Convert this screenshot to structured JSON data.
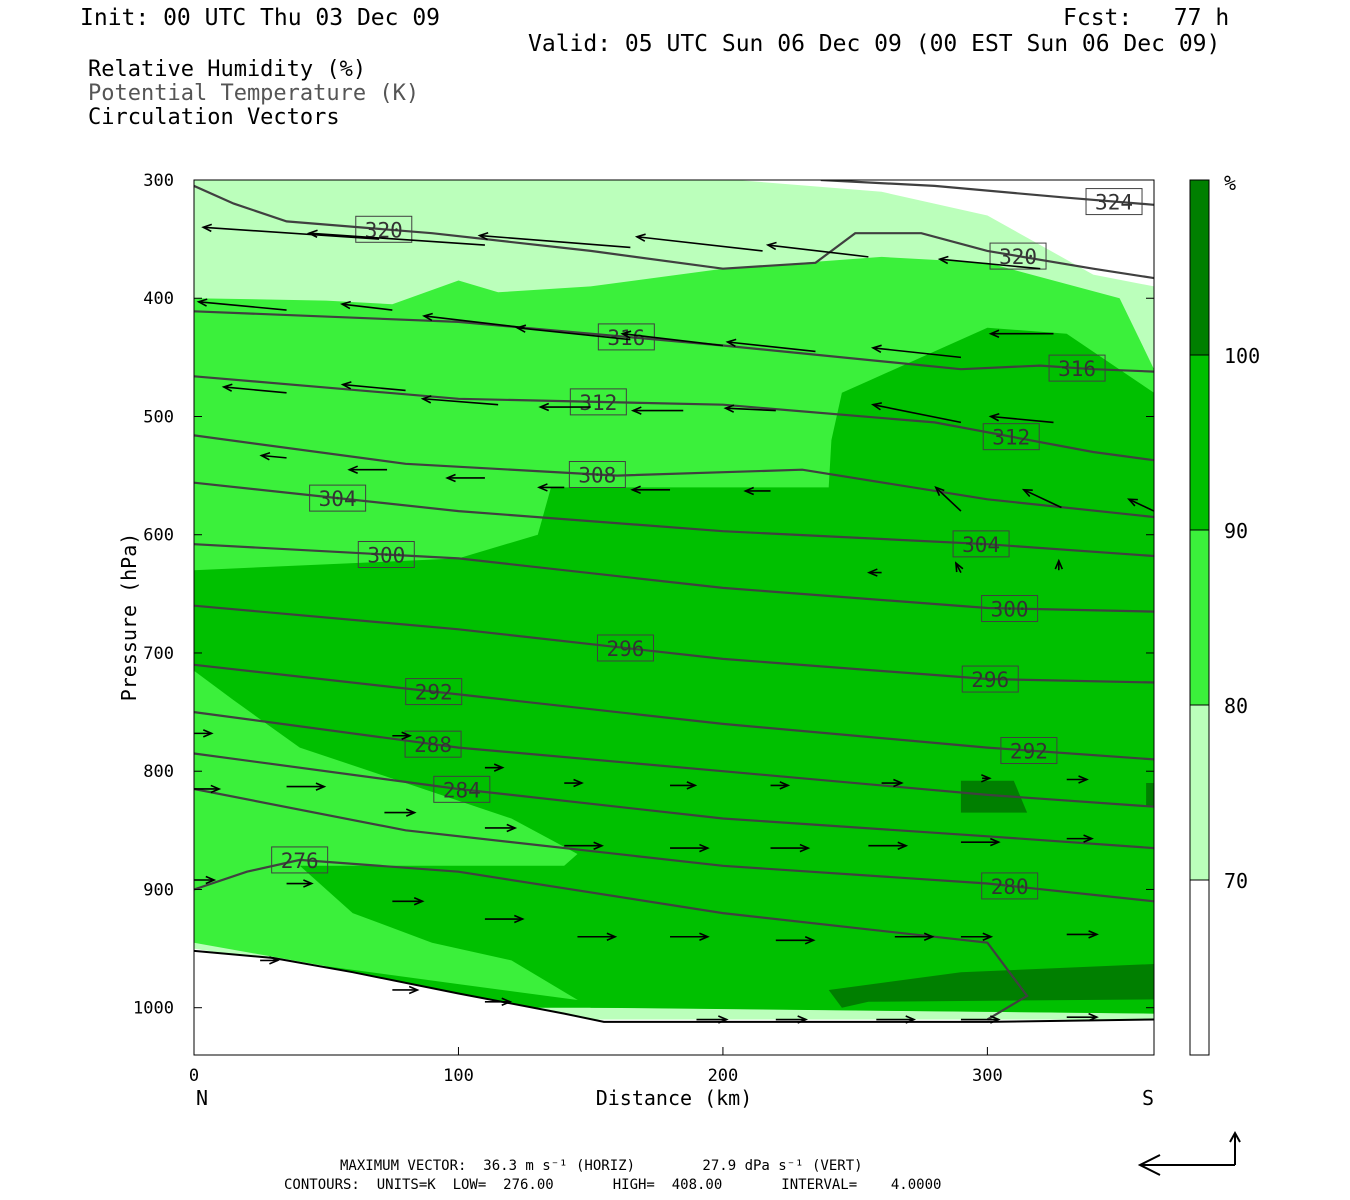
{
  "header": {
    "init": "Init: 00 UTC Thu 03 Dec 09",
    "fcst": "Fcst:   77 h",
    "valid": "Valid: 05 UTC Sun 06 Dec 09 (00 EST Sun 06 Dec 09)"
  },
  "legend": {
    "line1": "Relative Humidity (%)",
    "line2": "Potential Temperature (K)",
    "line3": "Circulation Vectors"
  },
  "footer": {
    "max_vector": "MAXIMUM VECTOR:  36.3 m s⁻¹ (HORIZ)        27.9 dPa s⁻¹ (VERT)",
    "contours": "CONTOURS:  UNITS=K  LOW=  276.00       HIGH=  408.00       INTERVAL=    4.0000"
  },
  "chart_data": {
    "type": "contour-cross-section",
    "xlabel": "Distance (km)",
    "ylabel": "Pressure (hPa)",
    "x_start_label": "N",
    "x_end_label": "S",
    "xlim": [
      0,
      363
    ],
    "ylim": [
      1040,
      300
    ],
    "x_ticks": [
      0,
      100,
      200,
      300
    ],
    "y_ticks": [
      300,
      400,
      500,
      600,
      700,
      800,
      900,
      1000
    ],
    "colorbar": {
      "unit": "%",
      "levels": [
        70,
        80,
        90,
        100
      ],
      "colors": [
        "#ffffff",
        "#bbffbb",
        "#3bf03b",
        "#00c000",
        "#007f00"
      ]
    },
    "theta_contours": [
      {
        "label": "324",
        "points": [
          [
            237,
            300
          ],
          [
            280,
            305
          ],
          [
            330,
            315
          ],
          [
            363,
            321
          ]
        ]
      },
      {
        "label": "320",
        "points": [
          [
            0,
            305
          ],
          [
            15,
            320
          ],
          [
            35,
            335
          ],
          [
            90,
            345
          ],
          [
            150,
            360
          ],
          [
            200,
            375
          ],
          [
            235,
            370
          ],
          [
            250,
            345
          ],
          [
            275,
            345
          ],
          [
            300,
            360
          ],
          [
            340,
            375
          ],
          [
            363,
            383
          ]
        ]
      },
      {
        "label": "316",
        "points": [
          [
            0,
            411
          ],
          [
            100,
            420
          ],
          [
            200,
            440
          ],
          [
            290,
            460
          ],
          [
            320,
            457
          ],
          [
            340,
            460
          ],
          [
            363,
            462
          ]
        ]
      },
      {
        "label": "312",
        "points": [
          [
            0,
            466
          ],
          [
            100,
            485
          ],
          [
            200,
            490
          ],
          [
            280,
            505
          ],
          [
            340,
            530
          ],
          [
            363,
            537
          ]
        ]
      },
      {
        "label": "308",
        "points": [
          [
            0,
            516
          ],
          [
            80,
            540
          ],
          [
            160,
            550
          ],
          [
            230,
            545
          ],
          [
            300,
            570
          ],
          [
            363,
            585
          ]
        ]
      },
      {
        "label": "304",
        "points": [
          [
            0,
            556
          ],
          [
            100,
            580
          ],
          [
            200,
            597
          ],
          [
            300,
            608
          ],
          [
            363,
            618
          ]
        ]
      },
      {
        "label": "300",
        "points": [
          [
            0,
            608
          ],
          [
            100,
            620
          ],
          [
            200,
            645
          ],
          [
            300,
            662
          ],
          [
            363,
            665
          ]
        ]
      },
      {
        "label": "296",
        "points": [
          [
            0,
            660
          ],
          [
            100,
            680
          ],
          [
            200,
            705
          ],
          [
            300,
            722
          ],
          [
            363,
            725
          ]
        ]
      },
      {
        "label": "292",
        "points": [
          [
            0,
            710
          ],
          [
            100,
            735
          ],
          [
            200,
            760
          ],
          [
            300,
            780
          ],
          [
            363,
            790
          ]
        ]
      },
      {
        "label": "288",
        "points": [
          [
            0,
            750
          ],
          [
            100,
            780
          ],
          [
            200,
            800
          ],
          [
            300,
            820
          ],
          [
            363,
            830
          ]
        ]
      },
      {
        "label": "284",
        "points": [
          [
            0,
            785
          ],
          [
            100,
            815
          ],
          [
            200,
            840
          ],
          [
            300,
            855
          ],
          [
            363,
            865
          ]
        ]
      },
      {
        "label": "280",
        "points": [
          [
            0,
            815
          ],
          [
            80,
            850
          ],
          [
            200,
            880
          ],
          [
            300,
            895
          ],
          [
            363,
            910
          ]
        ]
      },
      {
        "label": "276",
        "points": [
          [
            0,
            900
          ],
          [
            20,
            885
          ],
          [
            40,
            875
          ],
          [
            100,
            885
          ],
          [
            200,
            920
          ],
          [
            300,
            945
          ],
          [
            315,
            990
          ],
          [
            300,
            1010
          ]
        ]
      }
    ],
    "rh_regions": [
      {
        "rh_min": 70,
        "points": [
          [
            0,
            300
          ],
          [
            205,
            300
          ],
          [
            260,
            310
          ],
          [
            300,
            330
          ],
          [
            340,
            380
          ],
          [
            363,
            390
          ],
          [
            363,
            1010
          ],
          [
            150,
            1010
          ],
          [
            100,
            990
          ],
          [
            50,
            968
          ],
          [
            0,
            950
          ]
        ]
      },
      {
        "rh_min": 80,
        "points": [
          [
            0,
            400
          ],
          [
            50,
            402
          ],
          [
            75,
            405
          ],
          [
            100,
            385
          ],
          [
            115,
            395
          ],
          [
            150,
            390
          ],
          [
            200,
            375
          ],
          [
            260,
            365
          ],
          [
            300,
            370
          ],
          [
            350,
            400
          ],
          [
            363,
            460
          ],
          [
            363,
            1005
          ],
          [
            160,
            1000
          ],
          [
            100,
            985
          ],
          [
            50,
            965
          ],
          [
            0,
            945
          ]
        ]
      },
      {
        "rh_min": 90,
        "points": [
          [
            0,
            630
          ],
          [
            100,
            620
          ],
          [
            130,
            600
          ],
          [
            135,
            560
          ],
          [
            145,
            560
          ],
          [
            200,
            560
          ],
          [
            240,
            560
          ],
          [
            241,
            520
          ],
          [
            245,
            480
          ],
          [
            300,
            425
          ],
          [
            330,
            430
          ],
          [
            363,
            480
          ],
          [
            363,
            1005
          ],
          [
            150,
            1000
          ],
          [
            120,
            960
          ],
          [
            90,
            945
          ],
          [
            60,
            920
          ],
          [
            40,
            880
          ],
          [
            140,
            880
          ],
          [
            145,
            870
          ],
          [
            120,
            840
          ],
          [
            80,
            810
          ],
          [
            40,
            780
          ],
          [
            15,
            740
          ],
          [
            0,
            715
          ]
        ]
      },
      {
        "rh_min": 90,
        "points": [
          [
            0,
            960
          ],
          [
            50,
            965
          ],
          [
            100,
            980
          ],
          [
            150,
            995
          ],
          [
            160,
            1000
          ],
          [
            0,
            1000
          ]
        ]
      },
      {
        "rh_min": 100,
        "points": [
          [
            290,
            808
          ],
          [
            310,
            808
          ],
          [
            315,
            835
          ],
          [
            290,
            835
          ]
        ]
      },
      {
        "rh_min": 100,
        "points": [
          [
            240,
            985
          ],
          [
            290,
            970
          ],
          [
            363,
            963
          ],
          [
            363,
            993
          ],
          [
            255,
            995
          ],
          [
            245,
            1000
          ]
        ]
      },
      {
        "rh_min": 100,
        "points": [
          [
            360,
            810
          ],
          [
            363,
            810
          ],
          [
            363,
            830
          ],
          [
            360,
            830
          ]
        ]
      }
    ],
    "vectors": [
      {
        "x": 70,
        "y": 350,
        "dx": -70,
        "dy": -10
      },
      {
        "x": 110,
        "y": 355,
        "dx": -70,
        "dy": -10
      },
      {
        "x": 165,
        "y": 357,
        "dx": -60,
        "dy": -10
      },
      {
        "x": 215,
        "y": 360,
        "dx": -50,
        "dy": -12
      },
      {
        "x": 255,
        "y": 365,
        "dx": -40,
        "dy": -10
      },
      {
        "x": 320,
        "y": 375,
        "dx": -40,
        "dy": -8
      },
      {
        "x": 35,
        "y": 410,
        "dx": -35,
        "dy": -7
      },
      {
        "x": 75,
        "y": 410,
        "dx": -20,
        "dy": -5
      },
      {
        "x": 125,
        "y": 425,
        "dx": -40,
        "dy": -10
      },
      {
        "x": 165,
        "y": 435,
        "dx": -45,
        "dy": -10
      },
      {
        "x": 200,
        "y": 440,
        "dx": -40,
        "dy": -10
      },
      {
        "x": 235,
        "y": 445,
        "dx": -35,
        "dy": -8
      },
      {
        "x": 290,
        "y": 450,
        "dx": -35,
        "dy": -8
      },
      {
        "x": 325,
        "y": 430,
        "dx": -25,
        "dy": 0
      },
      {
        "x": 35,
        "y": 480,
        "dx": -25,
        "dy": -5
      },
      {
        "x": 80,
        "y": 478,
        "dx": -25,
        "dy": -5
      },
      {
        "x": 115,
        "y": 490,
        "dx": -30,
        "dy": -5
      },
      {
        "x": 150,
        "y": 492,
        "dx": -20,
        "dy": 0
      },
      {
        "x": 185,
        "y": 495,
        "dx": -20,
        "dy": 0
      },
      {
        "x": 220,
        "y": 495,
        "dx": -20,
        "dy": -2
      },
      {
        "x": 290,
        "y": 505,
        "dx": -35,
        "dy": -15
      },
      {
        "x": 325,
        "y": 505,
        "dx": -25,
        "dy": -5
      },
      {
        "x": 35,
        "y": 535,
        "dx": -10,
        "dy": -2
      },
      {
        "x": 73,
        "y": 545,
        "dx": -15,
        "dy": 0
      },
      {
        "x": 110,
        "y": 552,
        "dx": -15,
        "dy": 0
      },
      {
        "x": 140,
        "y": 560,
        "dx": -10,
        "dy": 0
      },
      {
        "x": 180,
        "y": 562,
        "dx": -15,
        "dy": 0
      },
      {
        "x": 218,
        "y": 563,
        "dx": -10,
        "dy": 0
      },
      {
        "x": 290,
        "y": 580,
        "dx": -10,
        "dy": -20
      },
      {
        "x": 328,
        "y": 577,
        "dx": -15,
        "dy": -15
      },
      {
        "x": 363,
        "y": 580,
        "dx": -10,
        "dy": -10
      },
      {
        "x": 260,
        "y": 632,
        "dx": -5,
        "dy": 0
      },
      {
        "x": 290,
        "y": 632,
        "dx": -2,
        "dy": -8
      },
      {
        "x": 327,
        "y": 630,
        "dx": 0,
        "dy": -8
      },
      {
        "x": 0,
        "y": 768,
        "dx": 7,
        "dy": 0
      },
      {
        "x": 35,
        "y": 813,
        "dx": 15,
        "dy": 0
      },
      {
        "x": 0,
        "y": 815,
        "dx": 10,
        "dy": 0
      },
      {
        "x": 75,
        "y": 770,
        "dx": 7,
        "dy": 0
      },
      {
        "x": 110,
        "y": 797,
        "dx": 7,
        "dy": 0
      },
      {
        "x": 140,
        "y": 810,
        "dx": 7,
        "dy": 0
      },
      {
        "x": 180,
        "y": 812,
        "dx": 10,
        "dy": 0
      },
      {
        "x": 218,
        "y": 812,
        "dx": 7,
        "dy": 0
      },
      {
        "x": 260,
        "y": 810,
        "dx": 8,
        "dy": 0
      },
      {
        "x": 298,
        "y": 806,
        "dx": 3,
        "dy": 0
      },
      {
        "x": 330,
        "y": 807,
        "dx": 8,
        "dy": 0
      },
      {
        "x": 72,
        "y": 835,
        "dx": 12,
        "dy": 0
      },
      {
        "x": 110,
        "y": 848,
        "dx": 12,
        "dy": 0
      },
      {
        "x": 140,
        "y": 863,
        "dx": 15,
        "dy": 0
      },
      {
        "x": 180,
        "y": 865,
        "dx": 15,
        "dy": 0
      },
      {
        "x": 218,
        "y": 865,
        "dx": 15,
        "dy": 0
      },
      {
        "x": 255,
        "y": 863,
        "dx": 15,
        "dy": 0
      },
      {
        "x": 290,
        "y": 860,
        "dx": 15,
        "dy": 0
      },
      {
        "x": 330,
        "y": 857,
        "dx": 10,
        "dy": 0
      },
      {
        "x": 0,
        "y": 892,
        "dx": 8,
        "dy": 0
      },
      {
        "x": 35,
        "y": 895,
        "dx": 10,
        "dy": 0
      },
      {
        "x": 75,
        "y": 910,
        "dx": 12,
        "dy": 0
      },
      {
        "x": 110,
        "y": 925,
        "dx": 15,
        "dy": 0
      },
      {
        "x": 145,
        "y": 940,
        "dx": 15,
        "dy": 0
      },
      {
        "x": 180,
        "y": 940,
        "dx": 15,
        "dy": 0
      },
      {
        "x": 220,
        "y": 943,
        "dx": 15,
        "dy": 0
      },
      {
        "x": 265,
        "y": 940,
        "dx": 15,
        "dy": 0
      },
      {
        "x": 290,
        "y": 940,
        "dx": 12,
        "dy": 0
      },
      {
        "x": 330,
        "y": 938,
        "dx": 12,
        "dy": 0
      },
      {
        "x": 25,
        "y": 960,
        "dx": 7,
        "dy": 0
      },
      {
        "x": 75,
        "y": 985,
        "dx": 10,
        "dy": 0
      },
      {
        "x": 110,
        "y": 995,
        "dx": 10,
        "dy": 0
      },
      {
        "x": 190,
        "y": 1010,
        "dx": 12,
        "dy": 0
      },
      {
        "x": 220,
        "y": 1010,
        "dx": 12,
        "dy": 0
      },
      {
        "x": 258,
        "y": 1010,
        "dx": 15,
        "dy": 0
      },
      {
        "x": 290,
        "y": 1010,
        "dx": 15,
        "dy": 0
      },
      {
        "x": 330,
        "y": 1008,
        "dx": 12,
        "dy": 0
      }
    ],
    "terrain_surface": [
      [
        0,
        952
      ],
      [
        30,
        958
      ],
      [
        60,
        970
      ],
      [
        100,
        988
      ],
      [
        140,
        1005
      ],
      [
        155,
        1012
      ],
      [
        200,
        1012
      ],
      [
        300,
        1012
      ],
      [
        363,
        1010
      ]
    ]
  }
}
